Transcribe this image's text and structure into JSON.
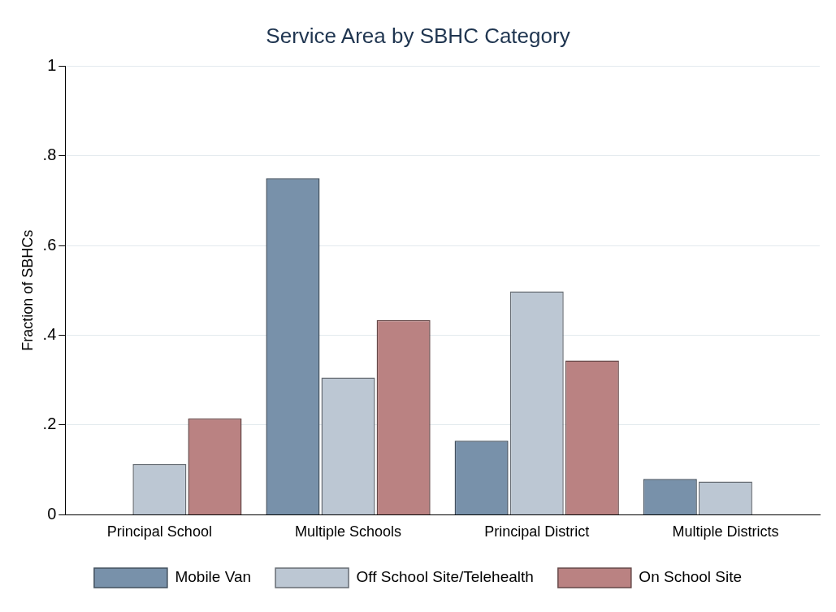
{
  "chart_data": {
    "type": "bar",
    "title": "Service Area by SBHC Category",
    "ylabel": "Fraction of SBHCs",
    "categories": [
      "Principal School",
      "Multiple Schools",
      "Principal District",
      "Multiple Districts"
    ],
    "series": [
      {
        "name": "Mobile Van",
        "color": "#7891aa",
        "values": [
          0,
          0.75,
          0.165,
          0.08
        ]
      },
      {
        "name": "Off School Site/Telehealth",
        "color": "#bcc7d3",
        "values": [
          0.113,
          0.306,
          0.498,
          0.074
        ]
      },
      {
        "name": "On School Site",
        "color": "#ba8282",
        "values": [
          0.215,
          0.434,
          0.344,
          0
        ]
      }
    ],
    "ylim": [
      0,
      1.0
    ],
    "yticks": [
      {
        "value": 0,
        "label": "0"
      },
      {
        "value": 0.2,
        "label": ".2"
      },
      {
        "value": 0.4,
        "label": ".4"
      },
      {
        "value": 0.6,
        "label": ".6"
      },
      {
        "value": 0.8,
        "label": ".8"
      },
      {
        "value": 1,
        "label": "1"
      }
    ],
    "grid": "y",
    "legend": "bottom"
  }
}
